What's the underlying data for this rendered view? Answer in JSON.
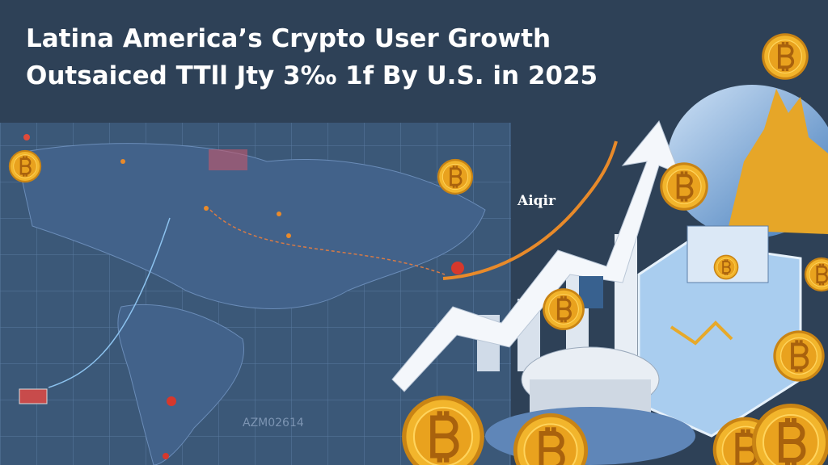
{
  "header": {
    "title_lines": [
      "Latina America’s Crypto User Growth",
      "Outsaiced TTll Jty 3‰ 1f By U.S. in 2025"
    ]
  },
  "labels": {
    "logo": "Aiqir",
    "map_code": "AZM02614"
  }
}
